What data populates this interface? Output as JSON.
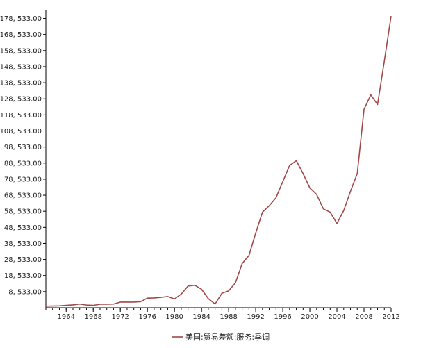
{
  "chart_data": {
    "type": "line",
    "title": "",
    "xlabel": "",
    "ylabel": "",
    "xlim": [
      1961,
      2012
    ],
    "ylim": [
      -1467,
      183533
    ],
    "grid": false,
    "legend_position": "bottom-center",
    "y_ticks": [
      "8, 533.00",
      "18, 533.00",
      "28, 533.00",
      "38, 533.00",
      "48, 533.00",
      "58, 533.00",
      "68, 533.00",
      "78, 533.00",
      "88, 533.00",
      "98, 533.00",
      "108, 533.00",
      "118, 533.00",
      "128, 533.00",
      "138, 533.00",
      "148, 533.00",
      "158, 533.00",
      "168, 533.00",
      "178, 533.00"
    ],
    "y_tick_values": [
      8533,
      18533,
      28533,
      38533,
      48533,
      58533,
      68533,
      78533,
      88533,
      98533,
      108533,
      118533,
      128533,
      138533,
      148533,
      158533,
      168533,
      178533
    ],
    "x_ticks": [
      "1964",
      "1968",
      "1972",
      "1976",
      "1980",
      "1984",
      "1988",
      "1992",
      "1996",
      "2000",
      "2004",
      "2008",
      "2012"
    ],
    "x_tick_values": [
      1964,
      1968,
      1972,
      1976,
      1980,
      1984,
      1988,
      1992,
      1996,
      2000,
      2004,
      2008,
      2012
    ],
    "series": [
      {
        "name": "美国:贸易差额:服务:季调",
        "color": "#a04848",
        "x": [
          1961,
          1962,
          1963,
          1964,
          1965,
          1966,
          1967,
          1968,
          1969,
          1970,
          1971,
          1972,
          1973,
          1974,
          1975,
          1976,
          1977,
          1978,
          1979,
          1980,
          1981,
          1982,
          1983,
          1984,
          1985,
          1986,
          1987,
          1988,
          1989,
          1990,
          1991,
          1992,
          1993,
          1994,
          1995,
          1996,
          1997,
          1998,
          1999,
          2000,
          2001,
          2002,
          2003,
          2004,
          2005,
          2006,
          2007,
          2008,
          2009,
          2010,
          2011,
          2012
        ],
        "values": [
          -500,
          -400,
          -300,
          0,
          300,
          800,
          200,
          0,
          700,
          700,
          800,
          2000,
          2000,
          2000,
          2300,
          4500,
          4600,
          5000,
          5500,
          4000,
          7000,
          12000,
          12500,
          10000,
          4200,
          800,
          7500,
          9000,
          14000,
          26000,
          31000,
          45000,
          58000,
          62000,
          67000,
          77000,
          87000,
          90000,
          82000,
          73000,
          69000,
          60000,
          58000,
          51000,
          59000,
          71000,
          82000,
          122000,
          131000,
          125000,
          152000,
          180000
        ]
      }
    ]
  }
}
